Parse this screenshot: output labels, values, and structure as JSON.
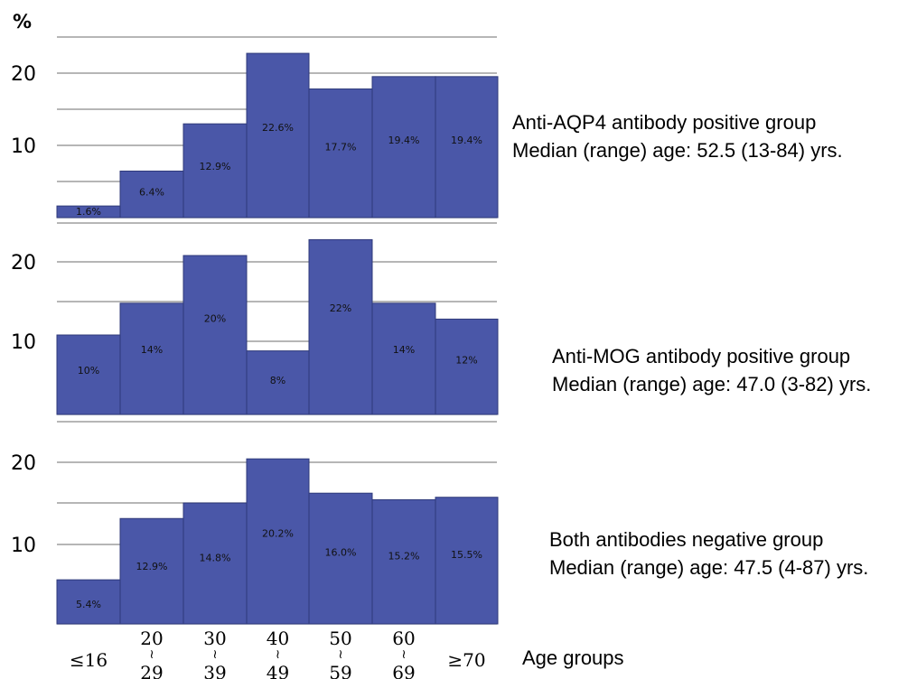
{
  "y_unit": "%",
  "x_axis_label": "Age groups",
  "x_ticks": [
    {
      "top": "≤16",
      "bottom": ""
    },
    {
      "top": "20",
      "bottom": "29"
    },
    {
      "top": "30",
      "bottom": "39"
    },
    {
      "top": "40",
      "bottom": "49"
    },
    {
      "top": "50",
      "bottom": "59"
    },
    {
      "top": "60",
      "bottom": "69"
    },
    {
      "top": "≥70",
      "bottom": ""
    }
  ],
  "panels": [
    {
      "line1": "Anti-AQP4 antibody positive group",
      "line2": "Median (range) age: 52.5 (13-84) yrs."
    },
    {
      "line1": "Anti-MOG antibody positive group",
      "line2": "Median (range) age: 47.0 (3-82) yrs."
    },
    {
      "line1": "Both antibodies negative group",
      "line2": "Median (range) age: 47.5 (4-87) yrs."
    }
  ],
  "bar_color": "#4a57a8",
  "chart_data": [
    {
      "type": "bar",
      "categories": [
        "≤16",
        "20-29",
        "30-39",
        "40-49",
        "50-59",
        "60-69",
        "≥70"
      ],
      "values": [
        1.6,
        6.4,
        12.9,
        22.6,
        17.7,
        19.4,
        19.4
      ],
      "labels": [
        "1.6%",
        "6.4%",
        "12.9%",
        "22.6%",
        "17.7%",
        "19.4%",
        "19.4%"
      ],
      "yticks": [
        "10",
        "20"
      ],
      "ylim": [
        0,
        25
      ],
      "ylabel": "%",
      "xlabel": "Age groups",
      "grid": true
    },
    {
      "type": "bar",
      "categories": [
        "≤16",
        "20-29",
        "30-39",
        "40-49",
        "50-59",
        "60-69",
        "≥70"
      ],
      "values": [
        10,
        14,
        20,
        8,
        22,
        14,
        12
      ],
      "labels": [
        "10%",
        "14%",
        "20%",
        "8%",
        "22%",
        "14%",
        "12%"
      ],
      "yticks": [
        "10",
        "20"
      ],
      "ylim": [
        0,
        25
      ],
      "ylabel": "%",
      "xlabel": "Age groups",
      "grid": true
    },
    {
      "type": "bar",
      "categories": [
        "≤16",
        "20-29",
        "30-39",
        "40-49",
        "50-59",
        "60-69",
        "≥70"
      ],
      "values": [
        5.4,
        12.9,
        14.8,
        20.2,
        16.0,
        15.2,
        15.5
      ],
      "labels": [
        "5.4%",
        "12.9%",
        "14.8%",
        "20.2%",
        "16.0%",
        "15.2%",
        "15.5%"
      ],
      "yticks": [
        "10",
        "20"
      ],
      "ylim": [
        0,
        20
      ],
      "ylabel": "%",
      "xlabel": "Age groups",
      "grid": true
    }
  ]
}
